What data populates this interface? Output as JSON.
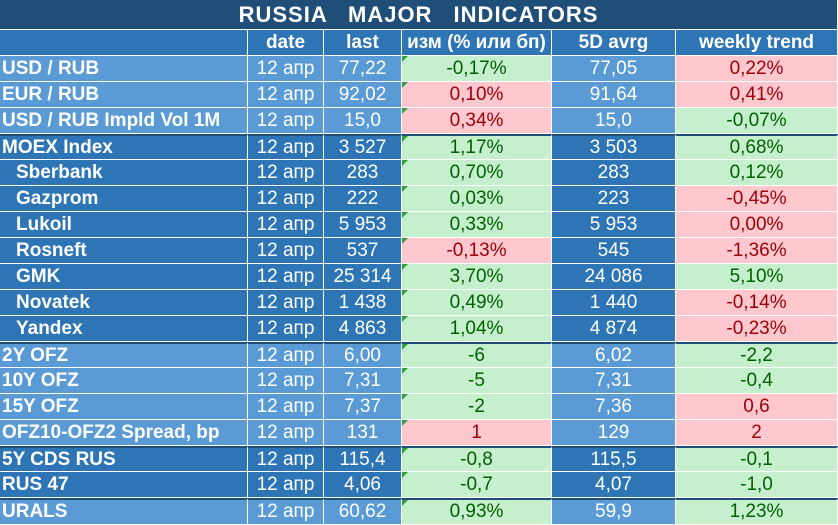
{
  "title": "RUSSIA    MAJOR    INDICATORS",
  "headers": [
    "",
    "date",
    "last",
    "изм (% или бп)",
    "5D avrg",
    "weekly trend"
  ],
  "colors": {
    "title_bg": "#1f4e79",
    "header_bg": "#2e75b6",
    "light_blue": "#5b9bd5",
    "dark_blue": "#2e75b6",
    "positive_bg": "#c6efce",
    "positive_text": "#006100",
    "negative_bg": "#ffc7ce",
    "negative_text": "#9c0006"
  },
  "rows": [
    {
      "name": "USD / RUB",
      "date": "12 апр",
      "last": "77,22",
      "chg": "-0,17%",
      "chg_sign": "pos",
      "avg": "77,05",
      "trend": "0,22%",
      "trend_sign": "neg",
      "group": "g1",
      "sub": false
    },
    {
      "name": "EUR / RUB",
      "date": "12 апр",
      "last": "92,02",
      "chg": "0,10%",
      "chg_sign": "neg",
      "avg": "91,64",
      "trend": "0,41%",
      "trend_sign": "neg",
      "group": "g1",
      "sub": false
    },
    {
      "name": "USD / RUB Impld Vol 1M",
      "date": "12 апр",
      "last": "15,0",
      "chg": "0,34%",
      "chg_sign": "neg",
      "avg": "15,0",
      "trend": "-0,07%",
      "trend_sign": "pos",
      "group": "g1",
      "sub": false
    },
    {
      "name": "MOEX Index",
      "date": "12 апр",
      "last": "3 527",
      "chg": "1,17%",
      "chg_sign": "pos",
      "avg": "3 503",
      "trend": "0,68%",
      "trend_sign": "pos",
      "group": "g2",
      "sub": false
    },
    {
      "name": "Sberbank",
      "date": "12 апр",
      "last": "283",
      "chg": "0,70%",
      "chg_sign": "pos",
      "avg": "283",
      "trend": "0,12%",
      "trend_sign": "pos",
      "group": "g2",
      "sub": true
    },
    {
      "name": "Gazprom",
      "date": "12 апр",
      "last": "222",
      "chg": "0,03%",
      "chg_sign": "pos",
      "avg": "223",
      "trend": "-0,45%",
      "trend_sign": "neg",
      "group": "g2",
      "sub": true
    },
    {
      "name": "Lukoil",
      "date": "12 апр",
      "last": "5 953",
      "chg": "0,33%",
      "chg_sign": "pos",
      "avg": "5 953",
      "trend": "0,00%",
      "trend_sign": "neg",
      "group": "g2",
      "sub": true
    },
    {
      "name": "Rosneft",
      "date": "12 апр",
      "last": "537",
      "chg": "-0,13%",
      "chg_sign": "neg",
      "avg": "545",
      "trend": "-1,36%",
      "trend_sign": "neg",
      "group": "g2",
      "sub": true
    },
    {
      "name": "GMK",
      "date": "12 апр",
      "last": "25 314",
      "chg": "3,70%",
      "chg_sign": "pos",
      "avg": "24 086",
      "trend": "5,10%",
      "trend_sign": "pos",
      "group": "g2",
      "sub": true
    },
    {
      "name": "Novatek",
      "date": "12 апр",
      "last": "1 438",
      "chg": "0,49%",
      "chg_sign": "pos",
      "avg": "1 440",
      "trend": "-0,14%",
      "trend_sign": "neg",
      "group": "g2",
      "sub": true
    },
    {
      "name": "Yandex",
      "date": "12 апр",
      "last": "4 863",
      "chg": "1,04%",
      "chg_sign": "pos",
      "avg": "4 874",
      "trend": "-0,23%",
      "trend_sign": "neg",
      "group": "g2",
      "sub": true
    },
    {
      "name": "2Y OFZ",
      "date": "12 апр",
      "last": "6,00",
      "chg": "-6",
      "chg_sign": "pos",
      "avg": "6,02",
      "trend": "-2,2",
      "trend_sign": "pos",
      "group": "g3",
      "sub": false
    },
    {
      "name": "10Y OFZ",
      "date": "12 апр",
      "last": "7,31",
      "chg": "-5",
      "chg_sign": "pos",
      "avg": "7,31",
      "trend": "-0,4",
      "trend_sign": "pos",
      "group": "g3",
      "sub": false
    },
    {
      "name": "15Y OFZ",
      "date": "12 апр",
      "last": "7,37",
      "chg": "-2",
      "chg_sign": "pos",
      "avg": "7,36",
      "trend": "0,6",
      "trend_sign": "neg",
      "group": "g3",
      "sub": false
    },
    {
      "name": "OFZ10-OFZ2 Spread, bp",
      "date": "12 апр",
      "last": "131",
      "chg": "1",
      "chg_sign": "neg",
      "avg": "129",
      "trend": "2",
      "trend_sign": "neg",
      "group": "g3",
      "sub": false
    },
    {
      "name": "5Y CDS RUS",
      "date": "12 апр",
      "last": "115,4",
      "chg": "-0,8",
      "chg_sign": "pos",
      "avg": "115,5",
      "trend": "-0,1",
      "trend_sign": "pos",
      "group": "g4",
      "sub": false
    },
    {
      "name": "RUS 47",
      "date": "12 апр",
      "last": "4,06",
      "chg": "-0,7",
      "chg_sign": "pos",
      "avg": "4,07",
      "trend": "-1,0",
      "trend_sign": "pos",
      "group": "g4",
      "sub": false
    },
    {
      "name": "URALS",
      "date": "12 апр",
      "last": "60,62",
      "chg": "0,93%",
      "chg_sign": "pos",
      "avg": "59,9",
      "trend": "1,23%",
      "trend_sign": "pos",
      "group": "g5",
      "sub": false
    }
  ]
}
